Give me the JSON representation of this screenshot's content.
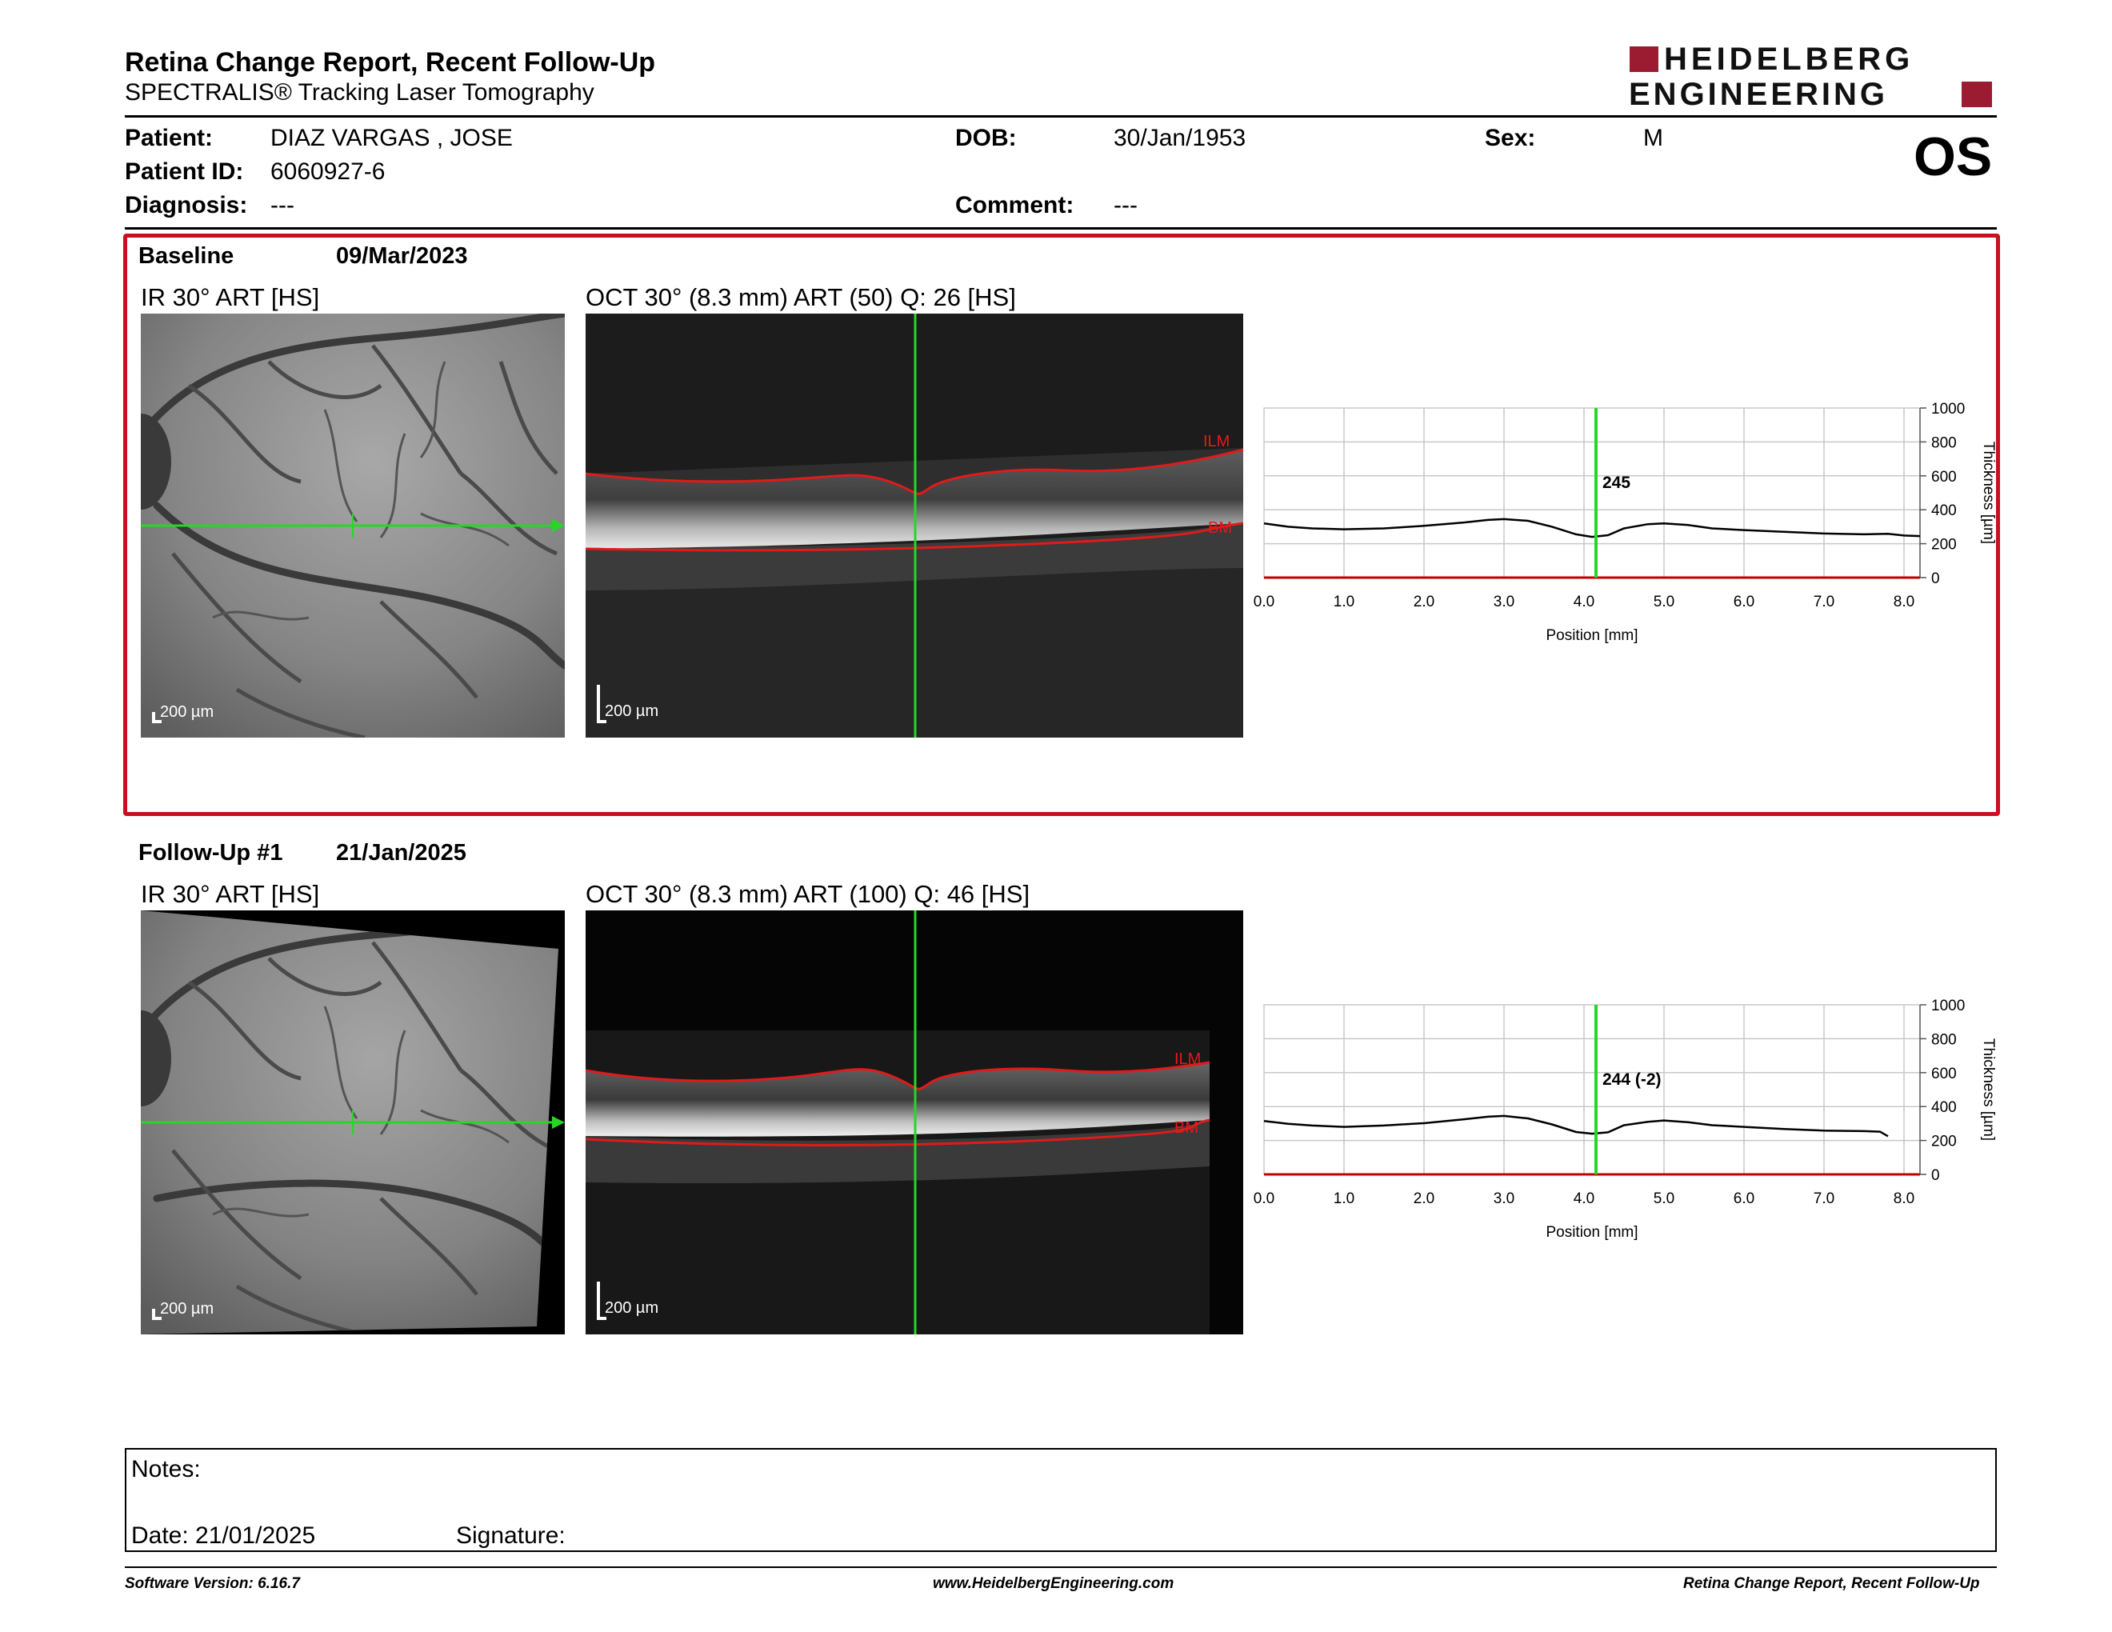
{
  "header": {
    "title": "Retina Change Report, Recent Follow-Up",
    "subtitle": "SPECTRALIS® Tracking Laser Tomography",
    "logo_line1": "HEIDELBERG",
    "logo_line2": "ENGINEERING",
    "eye": "OS"
  },
  "patient": {
    "patient_label": "Patient:",
    "patient_value": "DIAZ VARGAS , JOSE",
    "id_label": "Patient ID:",
    "id_value": "6060927-6",
    "diagnosis_label": "Diagnosis:",
    "diagnosis_value": "---",
    "dob_label": "DOB:",
    "dob_value": "30/Jan/1953",
    "comment_label": "Comment:",
    "comment_value": "---",
    "sex_label": "Sex:",
    "sex_value": "M"
  },
  "exams": [
    {
      "label": "Baseline",
      "date": "09/Mar/2023",
      "ir_title": "IR 30° ART [HS]",
      "oct_title": "OCT 30° (8.3 mm) ART (50) Q: 26 [HS]",
      "scale": "200 µm",
      "ilm": "ILM",
      "bm": "BM",
      "marker_value": "245"
    },
    {
      "label": "Follow-Up #1",
      "date": "21/Jan/2025",
      "ir_title": "IR 30° ART [HS]",
      "oct_title": "OCT 30° (8.3 mm) ART (100) Q: 46 [HS]",
      "scale": "200 µm",
      "ilm": "ILM",
      "bm": "BM",
      "marker_value": "244 (-2)"
    }
  ],
  "chart_data": [
    {
      "type": "line",
      "xlabel": "Position [mm]",
      "ylabel": "Thickness [µm]",
      "xlim": [
        0,
        8.2
      ],
      "ylim": [
        0,
        1000
      ],
      "x_ticks": [
        "0.0",
        "1.0",
        "2.0",
        "3.0",
        "4.0",
        "5.0",
        "6.0",
        "7.0",
        "8.0"
      ],
      "y_ticks": [
        "1000",
        "800",
        "600",
        "400",
        "200",
        "0"
      ],
      "grid": true,
      "marker_x": 4.15,
      "marker_label": "245",
      "x": [
        0.0,
        0.3,
        0.6,
        1.0,
        1.5,
        2.0,
        2.5,
        2.8,
        3.0,
        3.3,
        3.6,
        3.9,
        4.1,
        4.3,
        4.5,
        4.8,
        5.0,
        5.3,
        5.6,
        6.0,
        6.5,
        7.0,
        7.5,
        7.8,
        8.0,
        8.2
      ],
      "values": [
        320,
        300,
        290,
        285,
        290,
        305,
        325,
        340,
        345,
        335,
        300,
        255,
        240,
        250,
        290,
        315,
        320,
        310,
        290,
        280,
        270,
        260,
        255,
        258,
        248,
        245
      ],
      "colors": {
        "line": "#000000",
        "marker": "#27d627",
        "grid": "#c8c8c8",
        "baseline": "#c00000"
      }
    },
    {
      "type": "line",
      "xlabel": "Position [mm]",
      "ylabel": "Thickness [µm]",
      "xlim": [
        0,
        8.2
      ],
      "ylim": [
        0,
        1000
      ],
      "x_ticks": [
        "0.0",
        "1.0",
        "2.0",
        "3.0",
        "4.0",
        "5.0",
        "6.0",
        "7.0",
        "8.0"
      ],
      "y_ticks": [
        "1000",
        "800",
        "600",
        "400",
        "200",
        "0"
      ],
      "grid": true,
      "marker_x": 4.15,
      "marker_label": "244 (-2)",
      "x": [
        0.0,
        0.3,
        0.6,
        1.0,
        1.5,
        2.0,
        2.5,
        2.8,
        3.0,
        3.3,
        3.6,
        3.9,
        4.1,
        4.3,
        4.5,
        4.8,
        5.0,
        5.3,
        5.6,
        6.0,
        6.5,
        7.0,
        7.5,
        7.7,
        7.8
      ],
      "values": [
        315,
        298,
        288,
        280,
        288,
        302,
        325,
        340,
        345,
        330,
        295,
        250,
        240,
        248,
        290,
        310,
        318,
        308,
        290,
        280,
        268,
        258,
        255,
        252,
        225
      ],
      "colors": {
        "line": "#000000",
        "marker": "#27d627",
        "grid": "#c8c8c8",
        "baseline": "#c00000"
      }
    }
  ],
  "notes": {
    "notes_label": "Notes:",
    "date_label": "Date: 21/01/2025",
    "signature_label": "Signature:"
  },
  "footer": {
    "left": "Software Version: 6.16.7",
    "center": "www.HeidelbergEngineering.com",
    "right": "Retina Change Report, Recent Follow-Up"
  },
  "colors": {
    "brand_red": "#9b1b30",
    "frame_red": "#c8101e",
    "scan_green": "#27d627",
    "layer_red": "#e11a1a"
  }
}
